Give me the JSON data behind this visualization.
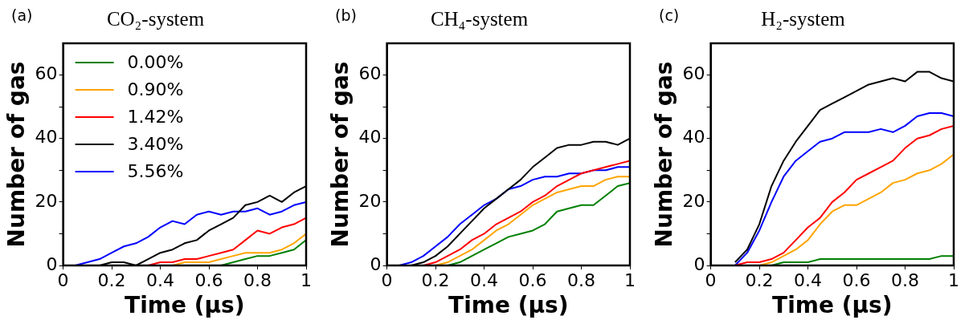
{
  "chart_data": [
    {
      "type": "line",
      "title": "CO₂-system",
      "xlabel": "Time (μs)",
      "ylabel": "Number of gas",
      "annotations": [
        "(a)"
      ],
      "x": [
        0.05,
        0.1,
        0.15,
        0.2,
        0.25,
        0.3,
        0.35,
        0.4,
        0.45,
        0.5,
        0.55,
        0.6,
        0.65,
        0.7,
        0.75,
        0.8,
        0.85,
        0.9,
        0.95,
        1
      ],
      "xlim": [
        0,
        1
      ],
      "xticks": [
        0,
        0.2,
        0.4,
        0.6,
        0.8,
        1
      ],
      "ylim": [
        0,
        70
      ],
      "yticks": [
        0,
        {
          "value": 10,
          "label": null
        },
        20,
        {
          "value": 30,
          "label": null
        },
        40,
        {
          "value": 50,
          "label": null
        },
        60
      ],
      "legend": "top left",
      "grid": false,
      "marker": "none",
      "line_style": "solid",
      "series": [
        {
          "name": "0.00%",
          "color": "#008000",
          "values": [
            null,
            null,
            null,
            null,
            null,
            null,
            null,
            null,
            null,
            null,
            null,
            null,
            0,
            1,
            2,
            3,
            3,
            4,
            5,
            8
          ]
        },
        {
          "name": "0.90%",
          "color": "#ffa500",
          "values": [
            null,
            null,
            null,
            null,
            null,
            null,
            null,
            null,
            0,
            1,
            1,
            1,
            2,
            3,
            4,
            4,
            4,
            5,
            7,
            10
          ]
        },
        {
          "name": "1.42%",
          "color": "#ff0000",
          "values": [
            null,
            null,
            null,
            null,
            null,
            null,
            0,
            1,
            1,
            2,
            2,
            3,
            4,
            5,
            8,
            11,
            10,
            12,
            13,
            15
          ]
        },
        {
          "name": "3.40%",
          "color": "#000000",
          "values": [
            null,
            null,
            0,
            1,
            1,
            0,
            2,
            4,
            5,
            7,
            8,
            11,
            13,
            15,
            19,
            20,
            22,
            20,
            23,
            25
          ]
        },
        {
          "name": "5.56%",
          "color": "#0000ff",
          "values": [
            0,
            1,
            2,
            4,
            6,
            7,
            9,
            12,
            14,
            13,
            16,
            17,
            16,
            17,
            17,
            18,
            16,
            17,
            19,
            20
          ]
        }
      ]
    },
    {
      "type": "line",
      "title": "CH₄-system",
      "xlabel": "Time (μs)",
      "ylabel": "Number of gas",
      "annotations": [
        "(b)"
      ],
      "x": [
        0.05,
        0.1,
        0.15,
        0.2,
        0.25,
        0.3,
        0.35,
        0.4,
        0.45,
        0.5,
        0.55,
        0.6,
        0.65,
        0.7,
        0.75,
        0.8,
        0.85,
        0.9,
        0.95,
        1
      ],
      "xlim": [
        0,
        1
      ],
      "xticks": [
        0,
        0.2,
        0.4,
        0.6,
        0.8,
        1
      ],
      "ylim": [
        0,
        70
      ],
      "yticks": [
        0,
        {
          "value": 10,
          "label": null
        },
        20,
        {
          "value": 30,
          "label": null
        },
        40,
        {
          "value": 50,
          "label": null
        },
        60
      ],
      "grid": false,
      "marker": "none",
      "line_style": "solid",
      "series": [
        {
          "color": "#008000",
          "values": [
            null,
            null,
            null,
            null,
            0,
            1,
            3,
            5,
            7,
            9,
            10,
            11,
            13,
            17,
            18,
            19,
            19,
            22,
            25,
            26
          ]
        },
        {
          "color": "#ffa500",
          "values": [
            null,
            null,
            null,
            0,
            1,
            3,
            5,
            8,
            11,
            13,
            16,
            19,
            21,
            23,
            24,
            25,
            25,
            27,
            28,
            28
          ]
        },
        {
          "color": "#ff0000",
          "values": [
            null,
            null,
            0,
            1,
            3,
            5,
            8,
            10,
            13,
            15,
            17,
            20,
            22,
            25,
            27,
            29,
            30,
            31,
            32,
            33
          ]
        },
        {
          "color": "#000000",
          "values": [
            null,
            0,
            1,
            3,
            6,
            10,
            14,
            18,
            21,
            24,
            27,
            31,
            34,
            37,
            38,
            38,
            39,
            39,
            38,
            40
          ]
        },
        {
          "color": "#0000ff",
          "values": [
            0,
            1,
            3,
            6,
            9,
            13,
            16,
            19,
            21,
            24,
            25,
            27,
            28,
            28,
            29,
            29,
            30,
            30,
            31,
            31
          ]
        }
      ]
    },
    {
      "type": "line",
      "title": "H₂-system",
      "xlabel": "Time (μs)",
      "ylabel": "Number of gas",
      "annotations": [
        "(c)"
      ],
      "x": [
        0.1,
        0.15,
        0.2,
        0.25,
        0.3,
        0.35,
        0.4,
        0.45,
        0.5,
        0.55,
        0.6,
        0.65,
        0.7,
        0.75,
        0.8,
        0.85,
        0.9,
        0.95,
        1
      ],
      "xlim": [
        0,
        1
      ],
      "xticks": [
        0,
        0.2,
        0.4,
        0.6,
        0.8,
        1
      ],
      "ylim": [
        0,
        70
      ],
      "yticks": [
        0,
        {
          "value": 10,
          "label": null
        },
        20,
        {
          "value": 30,
          "label": null
        },
        40,
        {
          "value": 50,
          "label": null
        },
        60
      ],
      "grid": false,
      "marker": "none",
      "line_style": "solid",
      "series": [
        {
          "color": "#008000",
          "values": [
            null,
            null,
            null,
            0,
            1,
            1,
            1,
            2,
            2,
            2,
            2,
            2,
            2,
            2,
            2,
            2,
            2,
            3,
            3
          ]
        },
        {
          "color": "#ffa500",
          "values": [
            null,
            null,
            0,
            1,
            3,
            5,
            8,
            13,
            17,
            19,
            19,
            21,
            23,
            26,
            27,
            29,
            30,
            32,
            35
          ]
        },
        {
          "color": "#ff0000",
          "values": [
            0,
            1,
            1,
            2,
            4,
            8,
            12,
            15,
            20,
            23,
            27,
            29,
            31,
            33,
            37,
            40,
            41,
            43,
            44
          ]
        },
        {
          "color": "#000000",
          "values": [
            1,
            5,
            13,
            25,
            33,
            39,
            44,
            49,
            51,
            53,
            55,
            57,
            58,
            59,
            58,
            61,
            61,
            59,
            58
          ]
        },
        {
          "color": "#0000ff",
          "values": [
            0,
            4,
            11,
            20,
            28,
            33,
            36,
            39,
            40,
            42,
            42,
            42,
            43,
            42,
            44,
            47,
            48,
            48,
            47
          ]
        }
      ]
    }
  ]
}
